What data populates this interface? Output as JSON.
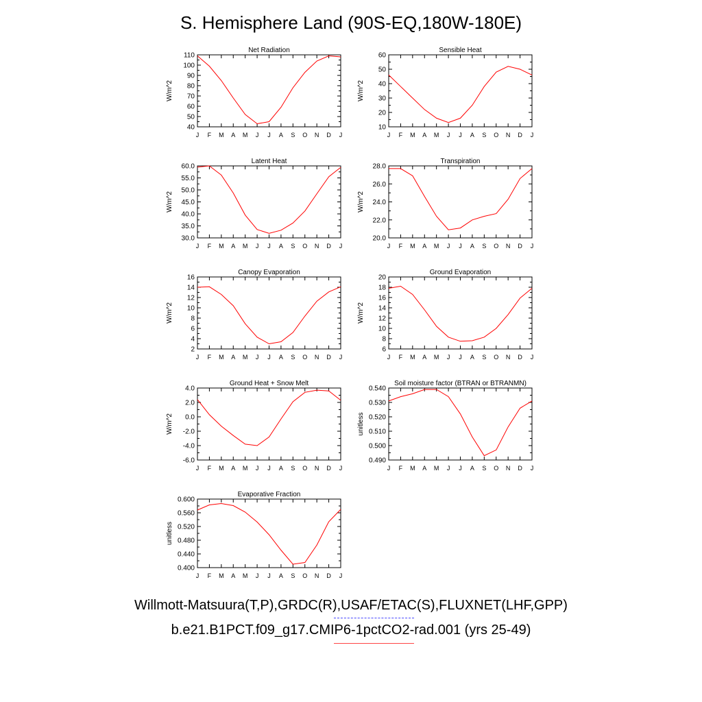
{
  "title": "S. Hemisphere Land (90S-EQ,180W-180E)",
  "footer": {
    "observations": "Willmott-Matsuura(T,P),GRDC(R),USAF/ETAC(S),FLUXNET(LHF,GPP)",
    "model": "b.e21.B1PCT.f09_g17.CMIP6-1pctCO2-rad.001 (yrs 25-49)"
  },
  "colors": {
    "model_line": "#ff0000",
    "obs_legend": "#4444ff"
  },
  "chart_data": [
    {
      "type": "line",
      "title": "Net Radiation",
      "ylabel": "W/m^2",
      "x": [
        "J",
        "F",
        "M",
        "A",
        "M",
        "J",
        "J",
        "A",
        "S",
        "O",
        "N",
        "D",
        "J"
      ],
      "ylim": [
        40,
        110
      ],
      "yticks": [
        "40",
        "50",
        "60",
        "70",
        "80",
        "90",
        "100",
        "110"
      ],
      "series": [
        {
          "values": [
            109,
            99,
            85,
            68,
            52,
            43,
            45,
            59,
            78,
            93,
            104,
            109,
            108
          ]
        }
      ]
    },
    {
      "type": "line",
      "title": "Sensible Heat",
      "ylabel": "W/m^2",
      "x": [
        "J",
        "F",
        "M",
        "A",
        "M",
        "J",
        "J",
        "A",
        "S",
        "O",
        "N",
        "D",
        "J"
      ],
      "ylim": [
        10,
        60
      ],
      "yticks": [
        "10",
        "20",
        "30",
        "40",
        "50",
        "60"
      ],
      "series": [
        {
          "values": [
            46,
            38,
            30,
            22,
            16,
            13,
            16,
            25,
            38,
            48,
            52,
            50,
            46
          ]
        }
      ]
    },
    {
      "type": "line",
      "title": "Latent Heat",
      "ylabel": "W/m^2",
      "x": [
        "J",
        "F",
        "M",
        "A",
        "M",
        "J",
        "J",
        "A",
        "S",
        "O",
        "N",
        "D",
        "J"
      ],
      "ylim": [
        30,
        60
      ],
      "yticks": [
        "30.0",
        "35.0",
        "40.0",
        "45.0",
        "50.0",
        "55.0",
        "60.0"
      ],
      "series": [
        {
          "values": [
            59.5,
            60.0,
            56.2,
            48.7,
            39.5,
            33.5,
            31.9,
            33.2,
            36.2,
            41.2,
            48.4,
            55.5,
            59.4
          ]
        }
      ]
    },
    {
      "type": "line",
      "title": "Transpiration",
      "ylabel": "W/m^2",
      "x": [
        "J",
        "F",
        "M",
        "A",
        "M",
        "J",
        "J",
        "A",
        "S",
        "O",
        "N",
        "D",
        "J"
      ],
      "ylim": [
        20,
        28
      ],
      "yticks": [
        "20.0",
        "22.0",
        "24.0",
        "26.0",
        "28.0"
      ],
      "series": [
        {
          "values": [
            27.7,
            27.7,
            26.9,
            24.6,
            22.4,
            20.9,
            21.1,
            22.0,
            22.4,
            22.7,
            24.3,
            26.6,
            27.7
          ]
        }
      ]
    },
    {
      "type": "line",
      "title": "Canopy Evaporation",
      "ylabel": "W/m^2",
      "x": [
        "J",
        "F",
        "M",
        "A",
        "M",
        "J",
        "J",
        "A",
        "S",
        "O",
        "N",
        "D",
        "J"
      ],
      "ylim": [
        2,
        16
      ],
      "yticks": [
        "2",
        "4",
        "6",
        "8",
        "10",
        "12",
        "14",
        "16"
      ],
      "series": [
        {
          "values": [
            14.0,
            14.1,
            12.6,
            10.4,
            6.9,
            4.3,
            3.0,
            3.4,
            5.2,
            8.4,
            11.3,
            13.1,
            14.1
          ]
        }
      ]
    },
    {
      "type": "line",
      "title": "Ground Evaporation",
      "ylabel": "W/m^2",
      "x": [
        "J",
        "F",
        "M",
        "A",
        "M",
        "J",
        "J",
        "A",
        "S",
        "O",
        "N",
        "D",
        "J"
      ],
      "ylim": [
        6,
        20
      ],
      "yticks": [
        "6",
        "8",
        "10",
        "12",
        "14",
        "16",
        "18",
        "20"
      ],
      "series": [
        {
          "values": [
            17.8,
            18.2,
            16.6,
            13.6,
            10.4,
            8.3,
            7.5,
            7.6,
            8.3,
            10.0,
            12.7,
            15.9,
            17.8
          ]
        }
      ]
    },
    {
      "type": "line",
      "title": "Ground Heat + Snow Melt",
      "ylabel": "W/m^2",
      "x": [
        "J",
        "F",
        "M",
        "A",
        "M",
        "J",
        "J",
        "A",
        "S",
        "O",
        "N",
        "D",
        "J"
      ],
      "ylim": [
        -6,
        4
      ],
      "yticks": [
        "-6.0",
        "-4.0",
        "-2.0",
        "0.0",
        "2.0",
        "4.0"
      ],
      "series": [
        {
          "values": [
            2.4,
            0.3,
            -1.3,
            -2.6,
            -3.8,
            -4.0,
            -2.8,
            -0.3,
            2.1,
            3.4,
            3.7,
            3.6,
            2.3
          ]
        }
      ]
    },
    {
      "type": "line",
      "title": "Soil moisture factor (BTRAN or BTRANMN)",
      "ylabel": "unitless",
      "x": [
        "J",
        "F",
        "M",
        "A",
        "M",
        "J",
        "J",
        "A",
        "S",
        "O",
        "N",
        "D",
        "J"
      ],
      "ylim": [
        0.49,
        0.54
      ],
      "yticks": [
        "0.490",
        "0.500",
        "0.510",
        "0.520",
        "0.530",
        "0.540"
      ],
      "series": [
        {
          "values": [
            0.531,
            0.534,
            0.536,
            0.539,
            0.539,
            0.534,
            0.522,
            0.506,
            0.493,
            0.497,
            0.513,
            0.526,
            0.531
          ]
        }
      ]
    },
    {
      "type": "line",
      "title": "Evaporative Fraction",
      "ylabel": "unitless",
      "x": [
        "J",
        "F",
        "M",
        "A",
        "M",
        "J",
        "J",
        "A",
        "S",
        "O",
        "N",
        "D",
        "J"
      ],
      "ylim": [
        0.4,
        0.6
      ],
      "yticks": [
        "0.400",
        "0.440",
        "0.480",
        "0.520",
        "0.560",
        "0.600"
      ],
      "series": [
        {
          "values": [
            0.568,
            0.583,
            0.587,
            0.581,
            0.562,
            0.533,
            0.496,
            0.451,
            0.41,
            0.415,
            0.466,
            0.534,
            0.57
          ]
        }
      ]
    }
  ]
}
